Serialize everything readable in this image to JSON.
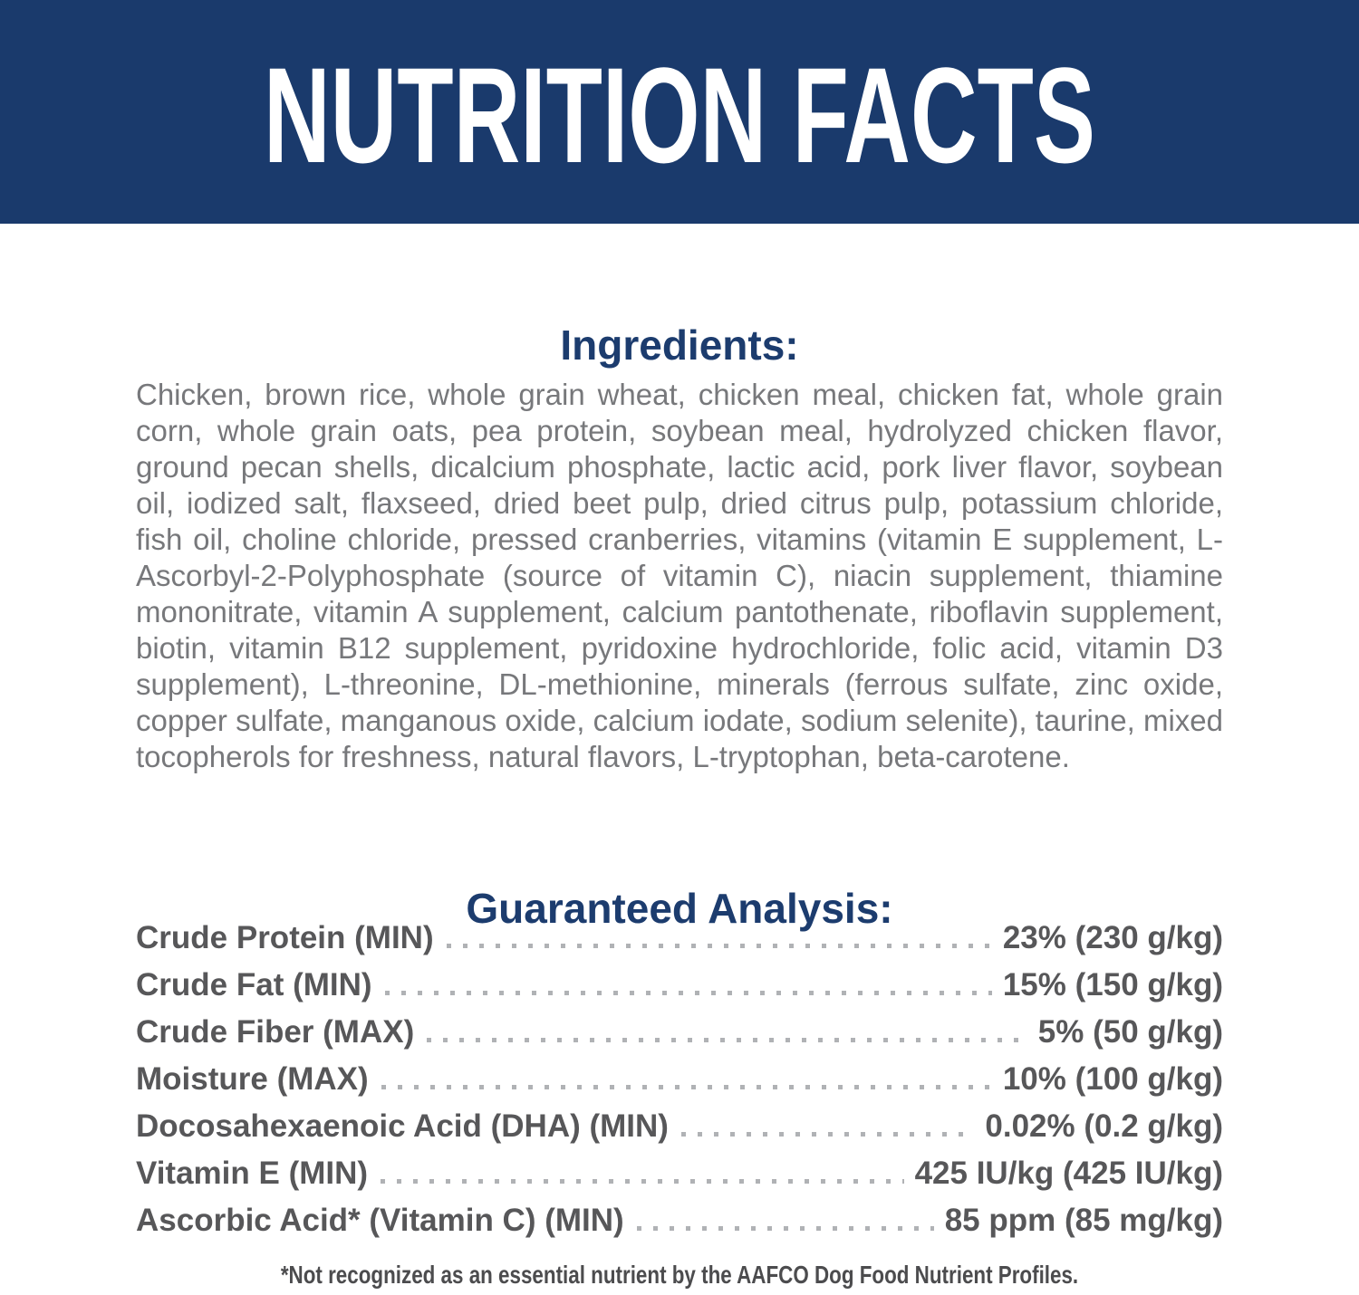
{
  "banner": {
    "title": "NUTRITION FACTS",
    "bg_color": "#1a3a6c",
    "text_color": "#ffffff"
  },
  "ingredients": {
    "heading": "Ingredients:",
    "body": "Chicken, brown rice, whole grain wheat, chicken meal, chicken fat, whole grain corn, whole grain oats, pea protein, soybean meal, hydrolyzed chicken flavor, ground pecan shells, dicalcium phosphate, lactic acid, pork liver flavor, soybean oil, iodized salt, flaxseed, dried beet pulp, dried citrus pulp, potassium chloride, fish oil, choline chloride, pressed cranberries, vitamins (vitamin E supplement, L-Ascorbyl-2-Polyphosphate (source of vitamin C), niacin supplement, thiamine mononitrate, vitamin A supplement, calcium pantothenate, riboflavin supplement, biotin, vitamin B12 supplement, pyridoxine hydrochloride, folic acid, vitamin D3 supplement), L-threonine, DL-methionine, minerals (ferrous sulfate, zinc oxide, copper sulfate, manganous oxide, calcium iodate, sodium selenite), taurine, mixed tocopherols for freshness, natural flavors, L-tryptophan, beta-carotene."
  },
  "guaranteed_analysis": {
    "heading": "Guaranteed Analysis:",
    "rows": [
      {
        "label": "Crude Protein (MIN)",
        "value": "23% (230 g/kg)"
      },
      {
        "label": "Crude Fat (MIN)",
        "value": "15% (150 g/kg)"
      },
      {
        "label": "Crude Fiber (MAX)",
        "value": "5% (50 g/kg)"
      },
      {
        "label": "Moisture (MAX)",
        "value": "10% (100 g/kg)"
      },
      {
        "label": "Docosahexaenoic Acid (DHA) (MIN)",
        "value": "0.02% (0.2 g/kg)"
      },
      {
        "label": "Vitamin E (MIN)",
        "value": "425 IU/kg (425 IU/kg)"
      },
      {
        "label": "Ascorbic Acid* (Vitamin C) (MIN)",
        "value": "85 ppm (85 mg/kg)"
      }
    ]
  },
  "footnote": "*Not recognized as an essential nutrient by the AAFCO Dog Food Nutrient Profiles.",
  "colors": {
    "banner_navy": "#1a3a6c",
    "heading_navy": "#1c3c6e",
    "ingredients_gray": "#77787b",
    "analysis_gray": "#575759",
    "dot_gray": "#b0b2b5",
    "footnote_gray": "#4c4c4e"
  }
}
